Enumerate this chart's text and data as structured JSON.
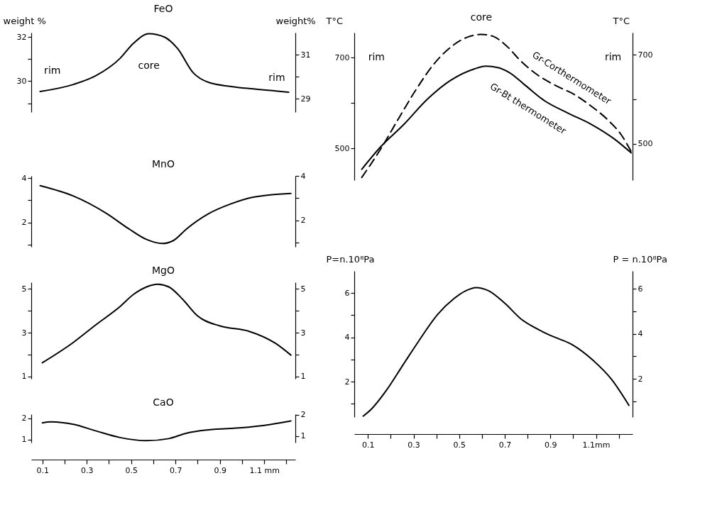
{
  "chart_data": [
    {
      "type": "line",
      "title": "FeO",
      "ylabel": "weight %",
      "y2label": "weight%",
      "tick_labels": "y",
      "color": "#000000",
      "x": [
        0.09,
        0.24,
        0.34,
        0.45,
        0.51,
        0.58,
        0.65,
        0.71,
        0.78,
        0.85,
        0.95,
        1.05,
        1.21
      ],
      "values": [
        29.53,
        29.85,
        30.24,
        31.03,
        31.71,
        32.15,
        32.0,
        31.47,
        30.38,
        29.94,
        29.76,
        29.65,
        29.5
      ],
      "xlim": [
        0.05,
        1.24
      ],
      "ylim": [
        28.6,
        32.2
      ],
      "yticks": [
        {
          "value": 29,
          "label": null
        },
        30,
        {
          "value": 31,
          "label": null
        },
        32
      ],
      "y2lim": [
        28.4,
        32.0
      ],
      "y2ticks": [
        29,
        {
          "value": 30,
          "label": null
        },
        31
      ],
      "annotations": [
        "rim",
        "core",
        "rim"
      ]
    },
    {
      "type": "line",
      "title": "MnO",
      "tick_labels": "y",
      "color": "#000000",
      "x": [
        0.09,
        0.24,
        0.39,
        0.49,
        0.57,
        0.64,
        0.69,
        0.75,
        0.85,
        0.95,
        1.05,
        1.22
      ],
      "values": [
        3.66,
        3.19,
        2.4,
        1.71,
        1.23,
        1.05,
        1.18,
        1.71,
        2.4,
        2.84,
        3.14,
        3.31
      ],
      "xlim": [
        0.05,
        1.24
      ],
      "ylim": [
        0.9,
        4.1
      ],
      "yticks": [
        {
          "value": 1,
          "label": null
        },
        2,
        {
          "value": 3,
          "label": null
        },
        4
      ],
      "y2lim": [
        0.8,
        4.0
      ],
      "y2ticks": [
        {
          "value": 1,
          "label": null
        },
        2,
        {
          "value": 3,
          "label": null
        },
        4
      ]
    },
    {
      "type": "line",
      "title": "MgO",
      "tick_labels": "y",
      "color": "#000000",
      "x": [
        0.1,
        0.24,
        0.34,
        0.45,
        0.51,
        0.57,
        0.62,
        0.67,
        0.73,
        0.8,
        0.9,
        1.03,
        1.15,
        1.22
      ],
      "values": [
        1.63,
        2.56,
        3.35,
        4.19,
        4.74,
        5.09,
        5.21,
        5.09,
        4.55,
        3.76,
        3.31,
        3.07,
        2.52,
        1.98
      ],
      "xlim": [
        0.05,
        1.24
      ],
      "ylim": [
        0.9,
        5.3
      ],
      "yticks": [
        1,
        {
          "value": 2,
          "label": null
        },
        3,
        {
          "value": 4,
          "label": null
        },
        5
      ],
      "y2lim": [
        0.9,
        5.3
      ],
      "y2ticks": [
        1,
        {
          "value": 2,
          "label": null
        },
        3,
        {
          "value": 4,
          "label": null
        },
        5
      ]
    },
    {
      "type": "line",
      "title": "CaO",
      "color": "#000000",
      "x": [
        0.1,
        0.14,
        0.24,
        0.34,
        0.45,
        0.57,
        0.67,
        0.75,
        0.85,
        1.0,
        1.1,
        1.22
      ],
      "values": [
        1.79,
        1.84,
        1.72,
        1.41,
        1.09,
        0.94,
        1.04,
        1.3,
        1.46,
        1.56,
        1.67,
        1.88
      ],
      "xlim": [
        0.05,
        1.24
      ],
      "xticks": [
        0.1,
        {
          "value": 0.2,
          "label": null
        },
        0.3,
        {
          "value": 0.4,
          "label": null
        },
        0.5,
        {
          "value": 0.6,
          "label": null
        },
        0.7,
        {
          "value": 0.8,
          "label": null
        },
        0.9,
        {
          "value": 1.0,
          "label": null
        },
        {
          "value": 1.1,
          "label": "1.1 mm"
        },
        {
          "value": 1.2,
          "label": null
        }
      ],
      "ylim": [
        0.85,
        2.2
      ],
      "yticks": [
        1,
        2
      ],
      "y2lim": [
        0.68,
        2.03
      ],
      "y2ticks": [
        1,
        2
      ]
    },
    {
      "type": "line",
      "ylabel": "T°C",
      "y2label": "T°C",
      "tick_labels": "y",
      "series": [
        {
          "name": "Gr-Corthermometer",
          "color": "#000000",
          "line_style": "dashed",
          "x": [
            0.073,
            0.155,
            0.237,
            0.309,
            0.391,
            0.473,
            0.536,
            0.597,
            0.648,
            0.709,
            0.771,
            0.843,
            0.925,
            1.007,
            1.079,
            1.151,
            1.213,
            1.254
          ],
          "values": [
            436,
            498,
            568,
            628,
            687,
            727,
            745,
            751,
            747,
            725,
            692,
            662,
            638,
            618,
            593,
            563,
            528,
            493
          ]
        },
        {
          "name": "Gr-Bt thermometer",
          "color": "#000000",
          "line_style": "solid",
          "x": [
            0.073,
            0.155,
            0.258,
            0.36,
            0.463,
            0.566,
            0.617,
            0.669,
            0.72,
            0.792,
            0.874,
            0.976,
            1.079,
            1.182,
            1.254
          ],
          "values": [
            454,
            503,
            553,
            608,
            650,
            675,
            681,
            678,
            667,
            638,
            605,
            578,
            553,
            520,
            490
          ]
        }
      ],
      "xlim": [
        0.04,
        1.26
      ],
      "ylim": [
        430,
        755
      ],
      "yticks": [
        500,
        {
          "value": 600,
          "label": null
        },
        700
      ],
      "y2lim": [
        418,
        750
      ],
      "y2ticks": [
        500,
        {
          "value": 600,
          "label": null
        },
        700
      ],
      "annotations": [
        "rim",
        "core",
        "rim"
      ]
    },
    {
      "type": "line",
      "ylabel": "P=n.10⁸Pa",
      "y2label": "P = n.10⁸Pa",
      "color": "#000000",
      "x": [
        0.079,
        0.112,
        0.183,
        0.254,
        0.325,
        0.406,
        0.477,
        0.528,
        0.574,
        0.63,
        0.7,
        0.771,
        0.833,
        0.904,
        0.995,
        1.087,
        1.168,
        1.244
      ],
      "values": [
        0.44,
        0.73,
        1.64,
        2.76,
        3.87,
        5.04,
        5.75,
        6.1,
        6.25,
        6.1,
        5.54,
        4.83,
        4.43,
        4.07,
        3.67,
        2.96,
        2.1,
        0.93
      ],
      "xlim": [
        0.04,
        1.26
      ],
      "xticks": [
        0.1,
        {
          "value": 0.2,
          "label": null
        },
        0.3,
        {
          "value": 0.4,
          "label": null
        },
        0.5,
        {
          "value": 0.6,
          "label": null
        },
        0.7,
        {
          "value": 0.8,
          "label": null
        },
        0.9,
        {
          "value": 1.0,
          "label": null
        },
        {
          "value": 1.1,
          "label": "1.1mm"
        },
        {
          "value": 1.2,
          "label": null
        }
      ],
      "ylim": [
        0.4,
        7
      ],
      "yticks": [
        {
          "value": 1,
          "label": null
        },
        2,
        {
          "value": 3,
          "label": null
        },
        4,
        {
          "value": 5,
          "label": null
        },
        6
      ],
      "y2lim": [
        0.3,
        6.8
      ],
      "y2ticks": [
        {
          "value": 1,
          "label": null
        },
        2,
        {
          "value": 3,
          "label": null
        },
        4,
        {
          "value": 5,
          "label": null
        },
        6
      ]
    }
  ]
}
